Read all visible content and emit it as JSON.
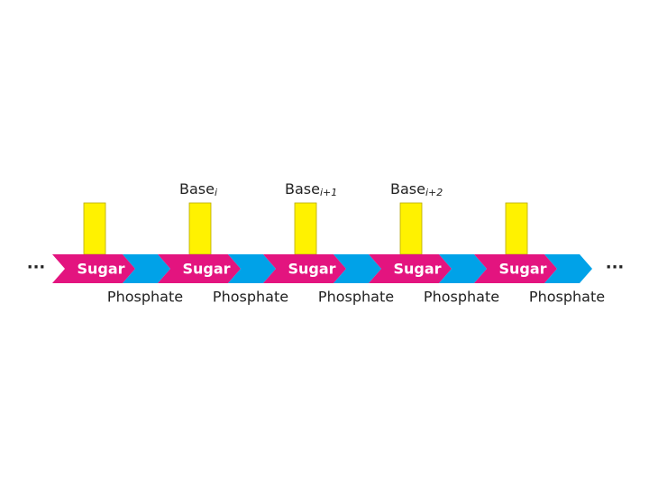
{
  "bases": [
    {
      "text": "Base",
      "sub": "i"
    },
    {
      "text": "Base",
      "sub": "i+1"
    },
    {
      "text": "Base",
      "sub": "i+2"
    }
  ],
  "sugars": [
    "Sugar",
    "Sugar",
    "Sugar",
    "Sugar",
    "Sugar"
  ],
  "phosphates": [
    "Phosphate",
    "Phosphate",
    "Phosphate",
    "Phosphate",
    "Phosphate"
  ],
  "ellipsis_left": "···",
  "ellipsis_right": "···"
}
